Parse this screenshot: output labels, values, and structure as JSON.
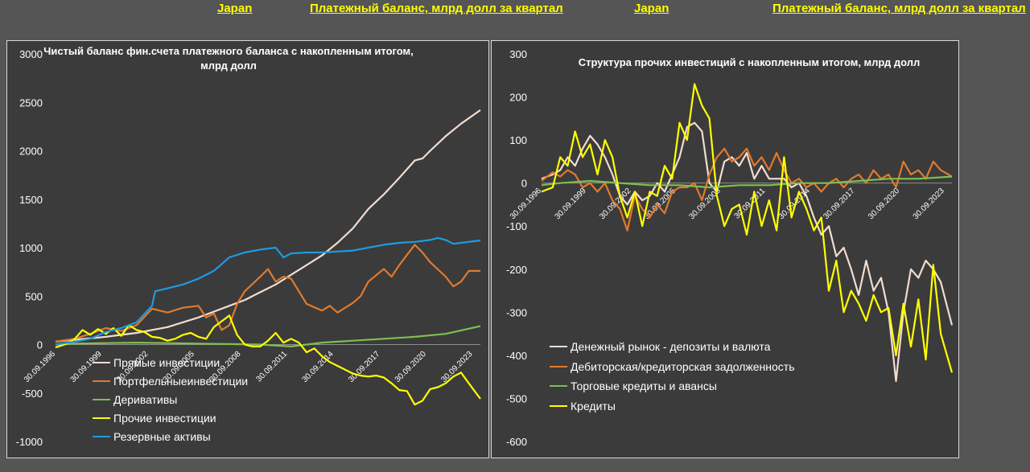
{
  "header": {
    "left_country": "Japan",
    "left_subtitle": "Платежный баланс, млрд долл за квартал",
    "right_country": "Japan",
    "right_subtitle": "Платежный баланс, млрд долл за квартал"
  },
  "colors": {
    "background": "#555555",
    "panel": "#3b3b3b",
    "header_text": "#ffff00",
    "white_series": "#f2dcd0",
    "orange_series": "#e07a2e",
    "green_series": "#7fbf4f",
    "yellow_series": "#ffff00",
    "blue_series": "#1e9be0"
  },
  "chart_data": [
    {
      "type": "line",
      "title": "Чистый баланс фин.счета платежного баланса с накопленным итогом, млрд долл",
      "ylim": [
        -1000,
        3000
      ],
      "yticks": [
        "3000",
        "2500",
        "2000",
        "1500",
        "1000",
        "500",
        "0",
        "-500",
        "-1000"
      ],
      "x_tick_labels": [
        "30.09.1996",
        "30.09.1999",
        "30.09.2002",
        "30.09.2005",
        "30.09.2008",
        "30.09.2011",
        "30.09.2014",
        "30.09.2017",
        "30.09.2020",
        "30.09.2023"
      ],
      "x_range": [
        1996.75,
        2024.25
      ],
      "legend": "bottom-left",
      "series": [
        {
          "name": "Прямые инвестиции",
          "color": "#f2dcd0",
          "x": [
            1996.75,
            1998,
            2000,
            2002,
            2004,
            2006,
            2008,
            2009,
            2010,
            2011,
            2012,
            2013,
            2014,
            2015,
            2016,
            2017,
            2018,
            2019,
            2020,
            2020.5,
            2021,
            2022,
            2023,
            2024.25
          ],
          "y": [
            30,
            50,
            80,
            120,
            180,
            280,
            400,
            460,
            540,
            620,
            720,
            820,
            920,
            1050,
            1200,
            1400,
            1550,
            1720,
            1900,
            1920,
            2000,
            2150,
            2280,
            2420
          ]
        },
        {
          "name": "Портфельныеинвестиции",
          "color": "#e07a2e",
          "x": [
            1996.75,
            1998,
            1999,
            2000,
            2001,
            2002,
            2003,
            2004,
            2005,
            2006,
            2006.5,
            2007,
            2007.5,
            2008,
            2008.5,
            2009,
            2010,
            2010.5,
            2011,
            2011.5,
            2012,
            2013,
            2014,
            2014.5,
            2015,
            2016,
            2016.5,
            2017,
            2018,
            2018.5,
            2019,
            2020,
            2020.5,
            2021,
            2022,
            2022.5,
            2023,
            2023.5,
            2024.25
          ],
          "y": [
            30,
            60,
            110,
            170,
            140,
            200,
            370,
            330,
            380,
            400,
            280,
            320,
            150,
            200,
            420,
            550,
            700,
            780,
            650,
            700,
            680,
            420,
            350,
            400,
            330,
            430,
            500,
            650,
            780,
            700,
            820,
            1030,
            950,
            850,
            700,
            600,
            650,
            760,
            760
          ]
        },
        {
          "name": "Деривативы",
          "color": "#7fbf4f",
          "x": [
            1996.75,
            1998,
            2000,
            2002,
            2004,
            2006,
            2008,
            2010,
            2012,
            2014,
            2016,
            2018,
            2020,
            2022,
            2024.25
          ],
          "y": [
            0,
            10,
            15,
            20,
            15,
            10,
            5,
            0,
            -20,
            20,
            40,
            60,
            80,
            110,
            190
          ]
        },
        {
          "name": "Прочие инвестиции",
          "color": "#ffff00",
          "x": [
            1996.75,
            1997.5,
            1998,
            1998.5,
            1999,
            1999.5,
            2000,
            2000.5,
            2001,
            2001.5,
            2002,
            2002.5,
            2003,
            2003.5,
            2004,
            2004.5,
            2005,
            2005.5,
            2006,
            2006.5,
            2007,
            2007.5,
            2008,
            2008.5,
            2009,
            2009.5,
            2010,
            2010.5,
            2011,
            2011.5,
            2012,
            2012.5,
            2013,
            2013.5,
            2014,
            2014.5,
            2015,
            2015.5,
            2016,
            2016.5,
            2017,
            2017.5,
            2018,
            2018.5,
            2019,
            2019.5,
            2020,
            2020.5,
            2021,
            2021.5,
            2022,
            2022.5,
            2023,
            2023.5,
            2024.25
          ],
          "y": [
            -30,
            10,
            60,
            150,
            100,
            160,
            110,
            170,
            90,
            200,
            150,
            130,
            80,
            70,
            40,
            60,
            100,
            120,
            80,
            60,
            180,
            240,
            300,
            100,
            0,
            -20,
            -20,
            40,
            120,
            20,
            60,
            20,
            -80,
            -40,
            -120,
            -180,
            -220,
            -260,
            -300,
            -320,
            -330,
            -320,
            -340,
            -400,
            -470,
            -480,
            -620,
            -580,
            -460,
            -440,
            -400,
            -330,
            -290,
            -400,
            -560
          ]
        },
        {
          "name": "Резервные активы",
          "color": "#1e9be0",
          "x": [
            1996.75,
            1998,
            1999,
            2000,
            2001,
            2002,
            2003,
            2003.2,
            2004,
            2005,
            2006,
            2007,
            2008,
            2009,
            2010,
            2011,
            2011.5,
            2012,
            2013,
            2014,
            2015,
            2016,
            2017,
            2018,
            2019,
            2020,
            2021,
            2021.5,
            2022,
            2022.5,
            2023,
            2024.25
          ],
          "y": [
            0,
            30,
            60,
            130,
            170,
            230,
            400,
            550,
            580,
            620,
            680,
            760,
            900,
            950,
            980,
            1000,
            900,
            940,
            950,
            950,
            960,
            970,
            1000,
            1030,
            1050,
            1060,
            1080,
            1100,
            1080,
            1040,
            1050,
            1075
          ]
        }
      ]
    },
    {
      "type": "line",
      "title": "Структура прочих инвестиций с накопленным итогом, млрд долл",
      "ylim": [
        -600,
        300
      ],
      "yticks": [
        "300",
        "200",
        "100",
        "0",
        "-100",
        "-200",
        "-300",
        "-400",
        "-500",
        "-600"
      ],
      "x_tick_labels": [
        "30.09.1996",
        "30.09.1999",
        "30.09.2002",
        "30.09.2005",
        "30.09.2008",
        "30.09.2011",
        "30.09.2014",
        "30.09.2017",
        "30.09.2020",
        "30.09.2023"
      ],
      "x_range": [
        1996.75,
        2024.25
      ],
      "legend": "bottom-left",
      "series": [
        {
          "name": "Денежный рынок - депозиты и валюта",
          "color": "#f2dcd0",
          "x": [
            1996.75,
            1997.5,
            1998,
            1998.5,
            1999,
            1999.5,
            2000,
            2000.5,
            2001,
            2001.5,
            2002,
            2002.5,
            2003,
            2003.5,
            2004,
            2004.5,
            2005,
            2005.5,
            2006,
            2006.5,
            2007,
            2007.5,
            2008,
            2008.5,
            2009,
            2009.5,
            2010,
            2010.5,
            2011,
            2011.5,
            2012,
            2012.5,
            2013,
            2013.5,
            2014,
            2014.5,
            2015,
            2015.5,
            2016,
            2016.5,
            2017,
            2017.5,
            2018,
            2018.5,
            2019,
            2019.5,
            2020,
            2020.5,
            2021,
            2021.5,
            2022,
            2022.5,
            2023,
            2023.5,
            2024.25
          ],
          "y": [
            10,
            20,
            30,
            60,
            40,
            80,
            110,
            90,
            60,
            20,
            -30,
            -50,
            -20,
            -40,
            -30,
            0,
            -20,
            20,
            60,
            130,
            140,
            120,
            0,
            -20,
            50,
            60,
            40,
            70,
            10,
            40,
            10,
            10,
            10,
            -10,
            0,
            -30,
            -80,
            -120,
            -100,
            -170,
            -150,
            -200,
            -260,
            -180,
            -250,
            -220,
            -300,
            -460,
            -300,
            -200,
            -220,
            -180,
            -200,
            -230,
            -330
          ]
        },
        {
          "name": "Дебиторская/кредиторская задолженность",
          "color": "#e07a2e",
          "x": [
            1996.75,
            1997.5,
            1998,
            1998.5,
            1999,
            1999.5,
            2000,
            2000.5,
            2001,
            2001.5,
            2002,
            2002.5,
            2003,
            2003.5,
            2004,
            2004.5,
            2005,
            2005.5,
            2006,
            2006.5,
            2007,
            2007.5,
            2008,
            2008.5,
            2009,
            2009.5,
            2010,
            2010.5,
            2011,
            2011.5,
            2012,
            2012.5,
            2013,
            2013.5,
            2014,
            2014.5,
            2015,
            2015.5,
            2016,
            2016.5,
            2017,
            2017.5,
            2018,
            2018.5,
            2019,
            2019.5,
            2020,
            2020.5,
            2021,
            2021.5,
            2022,
            2022.5,
            2023,
            2023.5,
            2024.25
          ],
          "y": [
            5,
            25,
            15,
            30,
            20,
            -10,
            0,
            -20,
            0,
            -40,
            -60,
            -110,
            -30,
            -60,
            -80,
            -50,
            -70,
            -20,
            -10,
            -10,
            0,
            -40,
            20,
            60,
            80,
            50,
            60,
            80,
            40,
            60,
            30,
            70,
            30,
            0,
            10,
            -10,
            0,
            -20,
            0,
            10,
            -10,
            10,
            20,
            0,
            30,
            10,
            20,
            -10,
            50,
            20,
            30,
            10,
            50,
            30,
            15
          ]
        },
        {
          "name": "Торговые кредиты и авансы",
          "color": "#7fbf4f",
          "x": [
            1996.75,
            1998,
            2000,
            2002,
            2004,
            2006,
            2008,
            2010,
            2012,
            2014,
            2016,
            2018,
            2020,
            2022,
            2024.25
          ],
          "y": [
            -5,
            0,
            5,
            0,
            -5,
            -5,
            -10,
            -5,
            -5,
            0,
            0,
            5,
            10,
            10,
            15
          ]
        },
        {
          "name": "Кредиты",
          "color": "#ffff00",
          "x": [
            1996.75,
            1997.5,
            1998,
            1998.5,
            1999,
            1999.5,
            2000,
            2000.5,
            2001,
            2001.5,
            2002,
            2002.5,
            2003,
            2003.5,
            2004,
            2004.5,
            2005,
            2005.5,
            2006,
            2006.5,
            2007,
            2007.5,
            2008,
            2008.5,
            2009,
            2009.5,
            2010,
            2010.5,
            2011,
            2011.5,
            2012,
            2012.5,
            2013,
            2013.5,
            2014,
            2014.5,
            2015,
            2015.5,
            2016,
            2016.5,
            2017,
            2017.5,
            2018,
            2018.5,
            2019,
            2019.5,
            2020,
            2020.5,
            2021,
            2021.5,
            2022,
            2022.5,
            2023,
            2023.5,
            2024.25
          ],
          "y": [
            -20,
            -10,
            60,
            40,
            120,
            60,
            90,
            20,
            100,
            60,
            -30,
            -80,
            -20,
            -100,
            -20,
            -30,
            40,
            10,
            140,
            100,
            230,
            180,
            150,
            -30,
            -100,
            -60,
            -50,
            -120,
            -20,
            -100,
            -40,
            -110,
            60,
            -80,
            -20,
            -60,
            -110,
            -80,
            -250,
            -180,
            -300,
            -250,
            -280,
            -320,
            -260,
            -300,
            -290,
            -400,
            -280,
            -380,
            -270,
            -410,
            -190,
            -350,
            -440
          ]
        }
      ]
    }
  ]
}
